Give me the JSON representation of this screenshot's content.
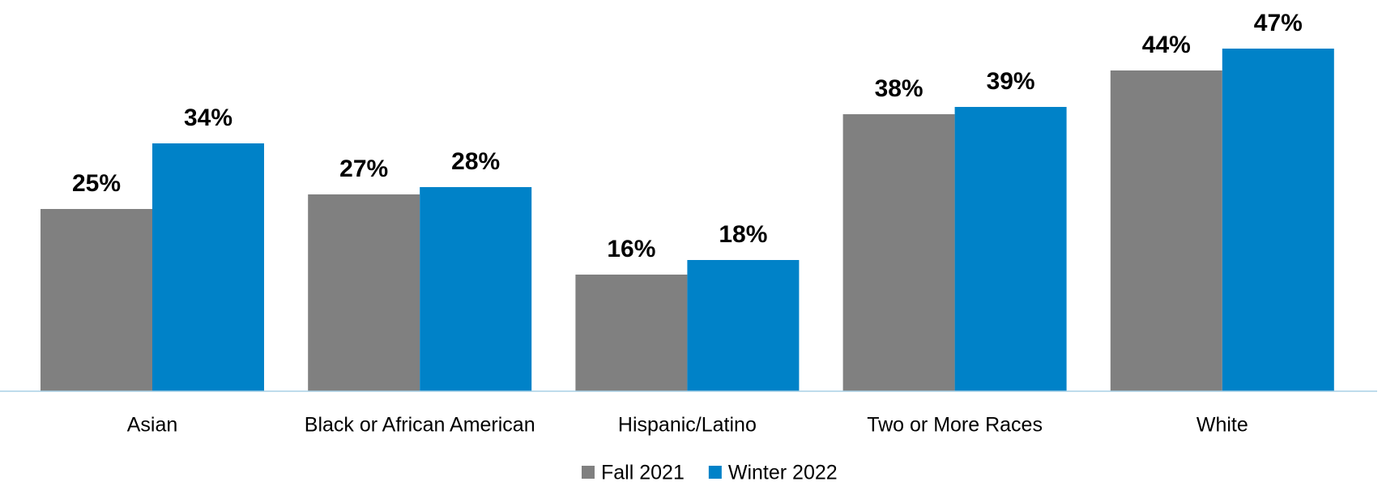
{
  "chart_data": {
    "type": "bar",
    "categories": [
      "Asian",
      "Black or African American",
      "Hispanic/Latino",
      "Two or More Races",
      "White"
    ],
    "series": [
      {
        "name": "Fall 2021",
        "color": "#808080",
        "values": [
          25,
          27,
          16,
          38,
          44
        ],
        "value_labels": [
          "25%",
          "27%",
          "16%",
          "38%",
          "44%"
        ]
      },
      {
        "name": "Winter 2022",
        "color": "#0082c8",
        "values": [
          34,
          28,
          18,
          39,
          47
        ],
        "value_labels": [
          "34%",
          "28%",
          "18%",
          "39%",
          "47%"
        ]
      }
    ],
    "ylim": [
      0,
      50
    ],
    "legend": "bottom"
  }
}
